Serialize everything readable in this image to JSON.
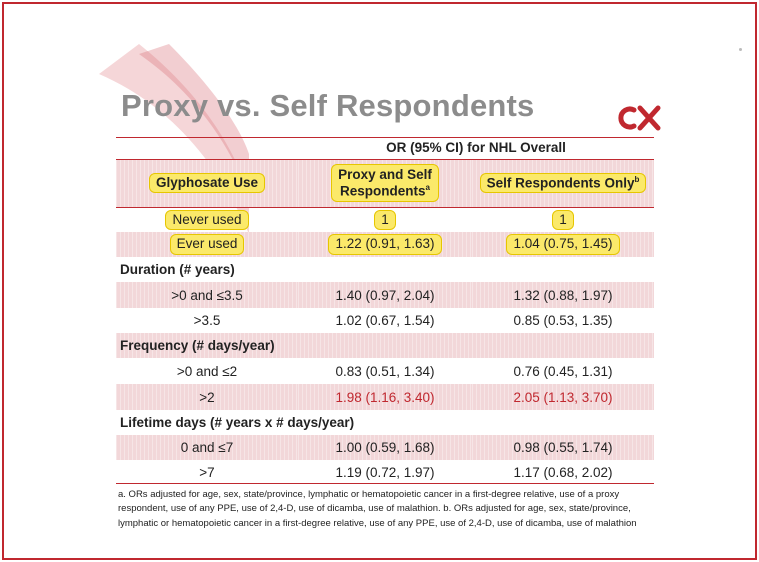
{
  "slide": {
    "title": "Proxy vs. Self Respondents",
    "logo_text": "ox",
    "accent_color": "#c0282f",
    "highlight_color": "#fbe96a"
  },
  "table": {
    "or_header": "OR (95% CI) for NHL Overall",
    "col_headers": {
      "exposure": "Glyphosate Use",
      "proxy_line1": "Proxy and Self",
      "proxy_line2": "Respondents",
      "proxy_sup": "a",
      "self": "Self Respondents Only",
      "self_sup": "b"
    },
    "rows": [
      {
        "label": "Never used",
        "proxy": "1",
        "self": "1"
      },
      {
        "label": "Ever used",
        "proxy": "1.22 (0.91, 1.63)",
        "self": "1.04 (0.75, 1.45)"
      },
      {
        "section": "Duration (# years)"
      },
      {
        "label": ">0 and ≤3.5",
        "proxy": "1.40 (0.97, 2.04)",
        "self": "1.32 (0.88, 1.97)"
      },
      {
        "label": ">3.5",
        "proxy": "1.02 (0.67, 1.54)",
        "self": "0.85 (0.53, 1.35)"
      },
      {
        "section": "Frequency (# days/year)"
      },
      {
        "label": ">0 and ≤2",
        "proxy": "0.83 (0.51, 1.34)",
        "self": "0.76 (0.45, 1.31)"
      },
      {
        "label": ">2",
        "proxy": "1.98 (1.16, 3.40)",
        "self": "2.05 (1.13, 3.70)"
      },
      {
        "section": "Lifetime days (# years x # days/year)"
      },
      {
        "label": "0 and ≤7",
        "proxy": "1.00 (0.59, 1.68)",
        "self": "0.98 (0.55, 1.74)"
      },
      {
        "label": ">7",
        "proxy": "1.19 (0.72, 1.97)",
        "self": "1.17 (0.68, 2.02)"
      }
    ]
  },
  "footnote": "a. ORs adjusted for age, sex, state/province, lymphatic or hematopoietic cancer in a first-degree relative, use of a proxy respondent, use of any PPE, use of 2,4-D, use of dicamba, use of malathion. b. ORs adjusted for age, sex, state/province, lymphatic or hematopoietic cancer in a first-degree relative, use of any PPE, use of 2,4-D, use of dicamba, use of malathion"
}
